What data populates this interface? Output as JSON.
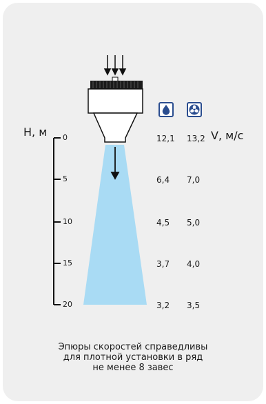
{
  "axis": {
    "h_label": "H, м",
    "v_label": "V, м/с",
    "ticks": [
      "0",
      "5",
      "10",
      "15",
      "20"
    ]
  },
  "icons": {
    "water": "water-drop-icon",
    "fan": "fan-icon"
  },
  "table": {
    "rows": [
      {
        "h": 0,
        "water": "12,1",
        "fan": "13,2"
      },
      {
        "h": 5,
        "water": "6,4",
        "fan": "7,0"
      },
      {
        "h": 10,
        "water": "4,5",
        "fan": "5,0"
      },
      {
        "h": 15,
        "water": "3,7",
        "fan": "4,0"
      },
      {
        "h": 20,
        "water": "3,2",
        "fan": "3,5"
      }
    ]
  },
  "note": {
    "line1": "Эпюры скоростей справедливы",
    "line2": "для плотной установки в ряд",
    "line3": "не менее 8 завес"
  },
  "colors": {
    "jet": "#a9dbf4",
    "icon_border": "#2a4d8f",
    "card": "#efefef"
  }
}
